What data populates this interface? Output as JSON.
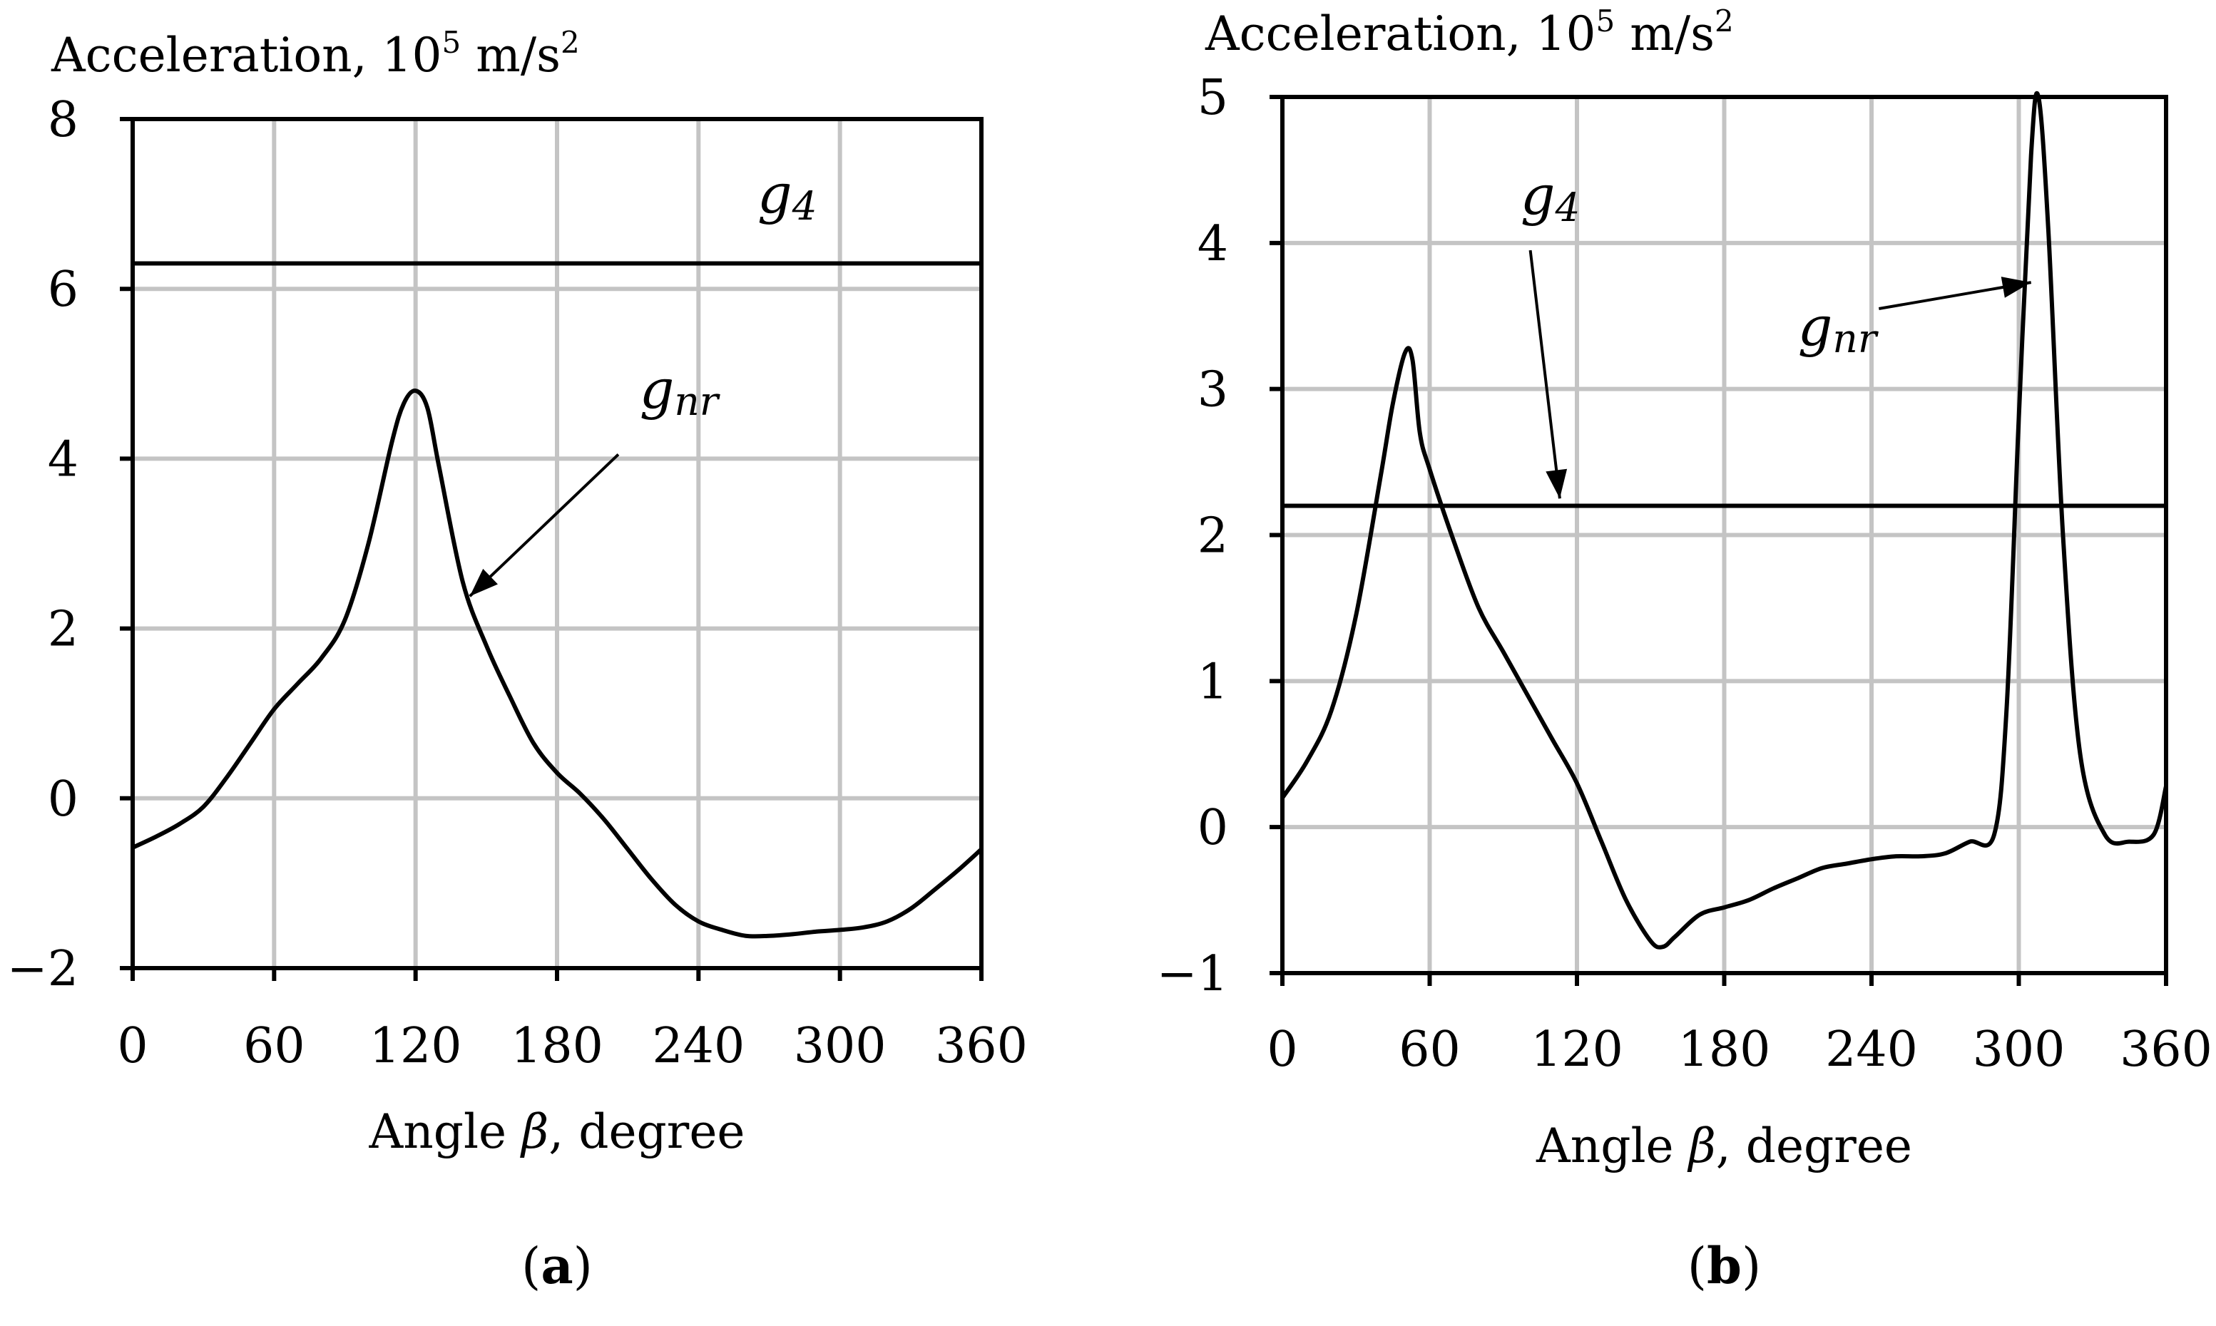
{
  "chart_data": [
    {
      "type": "line",
      "panel_label": "(a)",
      "ylabel": "Acceleration, 10",
      "ylabel_exp": "5",
      "ylabel_unit": " m/s",
      "ylabel_unit_exp": "2",
      "xlabel": "Angle ",
      "xlabel_symbol": "β",
      "xlabel_suffix": ", degree",
      "xlim": [
        0,
        360
      ],
      "ylim": [
        -2,
        8
      ],
      "xticks": [
        0,
        60,
        120,
        180,
        240,
        300,
        360
      ],
      "yticks": [
        -2,
        0,
        2,
        4,
        6,
        8
      ],
      "xtick_labels": [
        "0",
        "60",
        "120",
        "180",
        "240",
        "300",
        "360"
      ],
      "ytick_labels": [
        "−2",
        "0",
        "2",
        "4",
        "6",
        "8"
      ],
      "grid": true,
      "series": [
        {
          "name": "g_nr",
          "x": [
            0,
            10,
            20,
            30,
            40,
            50,
            60,
            70,
            80,
            90,
            100,
            110,
            115,
            120,
            125,
            130,
            140,
            150,
            160,
            170,
            180,
            190,
            200,
            210,
            220,
            230,
            240,
            250,
            260,
            270,
            280,
            290,
            300,
            310,
            320,
            330,
            340,
            350,
            360
          ],
          "values": [
            -0.58,
            -0.45,
            -0.3,
            -0.1,
            0.25,
            0.65,
            1.05,
            1.35,
            1.65,
            2.1,
            3.0,
            4.2,
            4.65,
            4.8,
            4.6,
            3.9,
            2.55,
            1.8,
            1.2,
            0.65,
            0.3,
            0.05,
            -0.25,
            -0.6,
            -0.95,
            -1.25,
            -1.45,
            -1.55,
            -1.62,
            -1.62,
            -1.6,
            -1.57,
            -1.55,
            -1.52,
            -1.45,
            -1.3,
            -1.08,
            -0.85,
            -0.6
          ]
        },
        {
          "name": "g_4",
          "type": "hline",
          "value": 6.3
        }
      ],
      "annotations": [
        {
          "base": "g",
          "sub": "4",
          "x": 265,
          "y": 6.9
        },
        {
          "base": "g",
          "sub": "nr",
          "x": 215,
          "y": 4.6,
          "arrow_from": [
            206,
            4.05
          ],
          "arrow_to": [
            143,
            2.38
          ]
        }
      ]
    },
    {
      "type": "line",
      "panel_label": "(b)",
      "ylabel": "Acceleration, 10",
      "ylabel_exp": "5",
      "ylabel_unit": " m/s",
      "ylabel_unit_exp": "2",
      "xlabel": "Angle ",
      "xlabel_symbol": "β",
      "xlabel_suffix": ", degree",
      "xlim": [
        0,
        360
      ],
      "ylim": [
        -1,
        5
      ],
      "xticks": [
        0,
        60,
        120,
        180,
        240,
        300,
        360
      ],
      "yticks": [
        -1,
        0,
        1,
        2,
        3,
        4,
        5
      ],
      "xtick_labels": [
        "0",
        "60",
        "120",
        "180",
        "240",
        "300",
        "360"
      ],
      "ytick_labels": [
        "−1",
        "0",
        "1",
        "2",
        "3",
        "4",
        "5"
      ],
      "grid": true,
      "series": [
        {
          "name": "g_nr",
          "x": [
            0,
            10,
            20,
            30,
            40,
            45,
            50,
            53,
            56,
            60,
            70,
            80,
            90,
            100,
            110,
            120,
            130,
            140,
            150,
            155,
            160,
            170,
            180,
            190,
            200,
            210,
            220,
            230,
            240,
            250,
            260,
            270,
            280,
            290,
            295,
            300,
            305,
            308,
            312,
            318,
            325,
            335,
            345,
            355,
            360
          ],
          "values": [
            0.2,
            0.45,
            0.8,
            1.45,
            2.4,
            2.9,
            3.25,
            3.2,
            2.7,
            2.45,
            1.95,
            1.5,
            1.2,
            0.9,
            0.6,
            0.3,
            -0.1,
            -0.5,
            -0.78,
            -0.82,
            -0.75,
            -0.6,
            -0.55,
            -0.5,
            -0.42,
            -0.35,
            -0.28,
            -0.25,
            -0.22,
            -0.2,
            -0.2,
            -0.18,
            -0.1,
            -0.05,
            0.8,
            2.8,
            4.6,
            5.0,
            4.1,
            2.0,
            0.5,
            -0.05,
            -0.1,
            -0.05,
            0.28
          ]
        },
        {
          "name": "g_4",
          "type": "hline",
          "value": 2.2
        }
      ],
      "annotations": [
        {
          "base": "g",
          "sub": "4",
          "x": 97,
          "y": 4.2,
          "arrow_from": [
            101,
            3.95
          ],
          "arrow_to": [
            113,
            2.25
          ]
        },
        {
          "base": "g",
          "sub": "nr",
          "x": 210,
          "y": 3.3,
          "arrow_from": [
            243,
            3.55
          ],
          "arrow_to": [
            305,
            3.73
          ]
        }
      ]
    }
  ]
}
